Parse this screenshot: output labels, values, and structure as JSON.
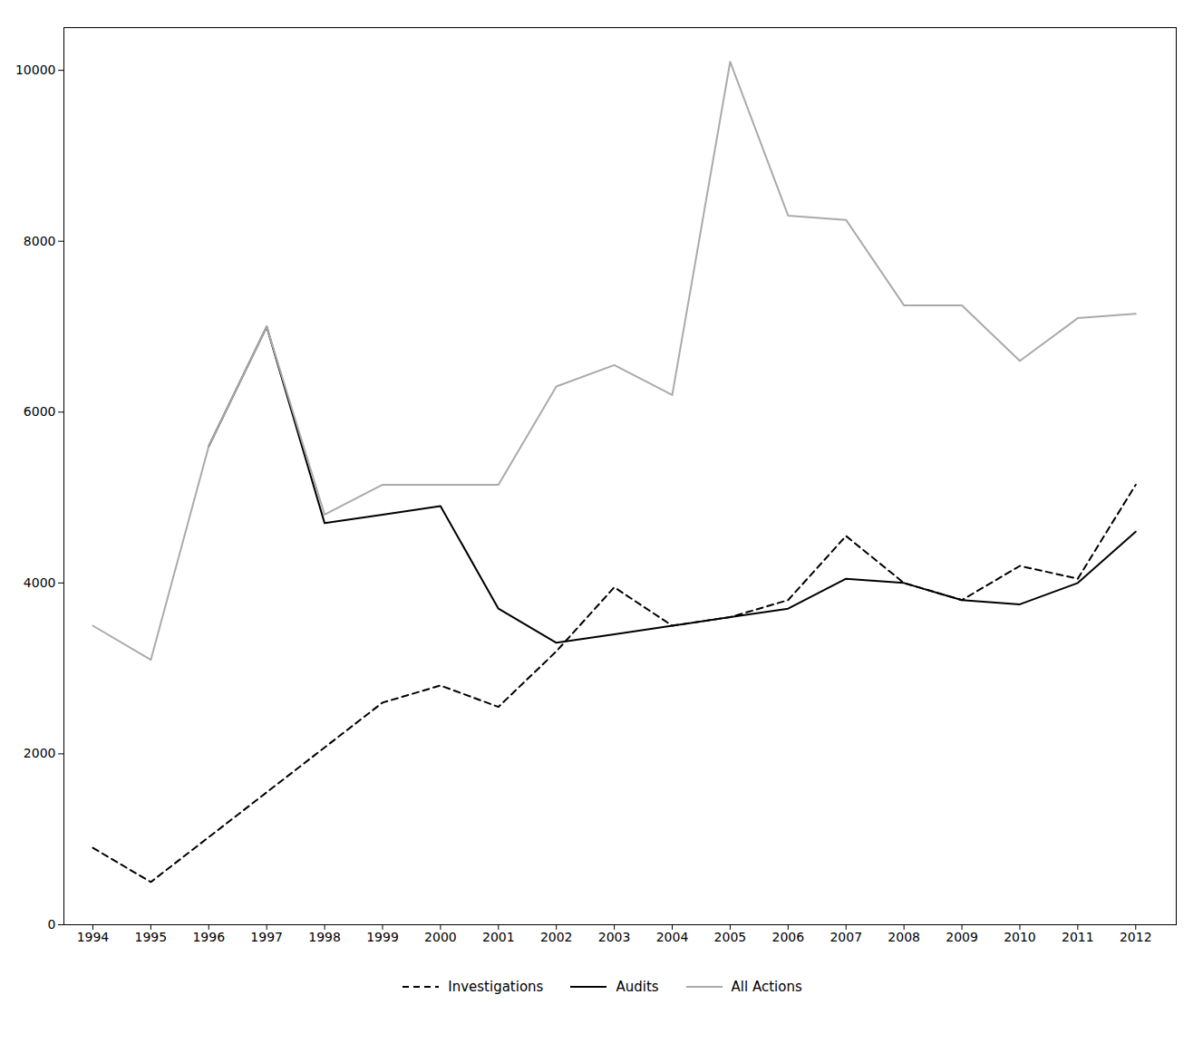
{
  "chart_data": {
    "type": "line",
    "xlim": [
      1993.5,
      2012.7
    ],
    "xticks": [
      1994,
      1995,
      1996,
      1997,
      1998,
      1999,
      2000,
      2001,
      2002,
      2003,
      2004,
      2005,
      2006,
      2007,
      2008,
      2009,
      2010,
      2011,
      2012
    ],
    "ylim": [
      0,
      10500
    ],
    "yticks": [
      0,
      2000,
      4000,
      6000,
      8000,
      10000
    ],
    "grid": false,
    "legend": "bottom",
    "series": [
      {
        "name": "Investigations",
        "color": "#000000",
        "line_style": "dashed",
        "x": [
          1994,
          1995,
          1999,
          2000,
          2001,
          2002,
          2003,
          2004,
          2005,
          2006,
          2007,
          2008,
          2009,
          2010,
          2011,
          2012
        ],
        "values": [
          900,
          500,
          2600,
          2800,
          2550,
          3200,
          3950,
          3500,
          3600,
          3800,
          4550,
          4000,
          3800,
          4200,
          4050,
          5150
        ]
      },
      {
        "name": "Audits",
        "color": "#000000",
        "line_style": "solid",
        "x": [
          1996,
          1997,
          1998,
          1999,
          2000,
          2001,
          2002,
          2003,
          2004,
          2005,
          2006,
          2007,
          2008,
          2009,
          2010,
          2011,
          2012
        ],
        "values": [
          5600,
          7000,
          4700,
          4800,
          4900,
          3700,
          3300,
          3400,
          3500,
          3600,
          3700,
          4050,
          4000,
          3800,
          3750,
          4000,
          4600
        ]
      },
      {
        "name": "All Actions",
        "color": "#aaaaaa",
        "line_style": "solid",
        "x": [
          1994,
          1995,
          1996,
          1997,
          1998,
          1999,
          2000,
          2001,
          2002,
          2003,
          2004,
          2005,
          2006,
          2007,
          2008,
          2009,
          2010,
          2011,
          2012
        ],
        "values": [
          3500,
          3100,
          5600,
          7000,
          4800,
          5150,
          5150,
          5150,
          6300,
          6550,
          6200,
          10100,
          8300,
          8250,
          7250,
          7250,
          6600,
          7100,
          7150
        ]
      }
    ]
  }
}
